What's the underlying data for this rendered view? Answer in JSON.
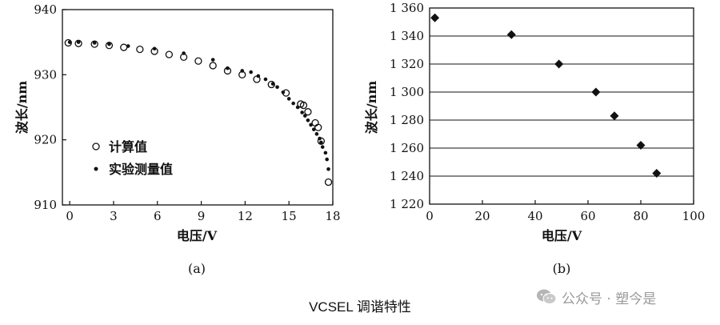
{
  "chart_data": [
    {
      "type": "scatter",
      "panel_label": "(a)",
      "xlabel": "电压/V",
      "ylabel": "波长/nm",
      "xlim": [
        -0.5,
        18
      ],
      "ylim": [
        910,
        940
      ],
      "xticks": [
        0,
        3,
        6,
        9,
        12,
        15,
        18
      ],
      "xtick_labels": [
        "0",
        "3",
        "6",
        "9",
        "12",
        "15",
        "18"
      ],
      "yticks": [
        910,
        920,
        930,
        940
      ],
      "ytick_labels": [
        "910",
        "920",
        "930",
        "940"
      ],
      "grid": false,
      "legend_position": "bottom-left",
      "series": [
        {
          "name": "计算值",
          "marker": "open-circle",
          "x": [
            -0.1,
            0.6,
            1.7,
            2.7,
            3.7,
            4.8,
            5.8,
            6.8,
            7.8,
            8.8,
            9.8,
            10.8,
            11.8,
            12.8,
            13.8,
            14.8,
            15.8,
            16.0,
            16.3,
            16.8,
            17.0,
            17.2,
            17.7
          ],
          "y": [
            934.9,
            934.8,
            934.7,
            934.5,
            934.2,
            933.9,
            933.6,
            933.1,
            932.7,
            932.1,
            931.4,
            930.6,
            930.0,
            929.3,
            928.5,
            927.2,
            925.5,
            925.3,
            924.3,
            922.6,
            921.9,
            919.8,
            913.5
          ]
        },
        {
          "name": "实验测量值",
          "marker": "filled-dot",
          "x": [
            0.0,
            0.6,
            1.7,
            2.7,
            4.0,
            5.8,
            7.8,
            9.8,
            10.8,
            11.8,
            12.4,
            12.9,
            13.4,
            13.9,
            14.2,
            14.6,
            15.0,
            15.3,
            15.6,
            15.9,
            16.1,
            16.3,
            16.5,
            16.7,
            16.9,
            17.1,
            17.2,
            17.3,
            17.5,
            17.6,
            17.7
          ],
          "y": [
            935.0,
            935.0,
            934.9,
            934.7,
            934.4,
            934.0,
            933.3,
            932.3,
            931.0,
            930.6,
            930.4,
            929.8,
            929.3,
            928.6,
            928.1,
            927.3,
            926.3,
            925.6,
            925.0,
            924.2,
            923.7,
            923.0,
            922.3,
            921.6,
            920.9,
            920.2,
            919.6,
            918.9,
            918.0,
            917.0,
            915.5
          ]
        }
      ]
    },
    {
      "type": "scatter",
      "panel_label": "(b)",
      "xlabel": "电压/V",
      "ylabel": "波长/nm",
      "xlim": [
        0,
        100
      ],
      "ylim": [
        1220,
        1360
      ],
      "xticks": [
        0,
        20,
        40,
        60,
        80,
        100
      ],
      "xtick_labels": [
        "0",
        "20",
        "40",
        "60",
        "80",
        "100"
      ],
      "yticks": [
        1220,
        1240,
        1260,
        1280,
        1300,
        1320,
        1340,
        1360
      ],
      "ytick_labels": [
        "1 220",
        "1 240",
        "1 260",
        "1 280",
        "1 300",
        "1 320",
        "1 340",
        "1 360"
      ],
      "grid": "horizontal",
      "series": [
        {
          "marker": "filled-diamond",
          "x": [
            2,
            31,
            49,
            63,
            70,
            80,
            86
          ],
          "y": [
            1353,
            1341,
            1320,
            1300,
            1283,
            1262,
            1242
          ]
        }
      ]
    }
  ],
  "caption": "VCSEL  调谐特性",
  "watermark": {
    "text": "公众号 · 塑今是",
    "icon": "wechat-icon"
  }
}
